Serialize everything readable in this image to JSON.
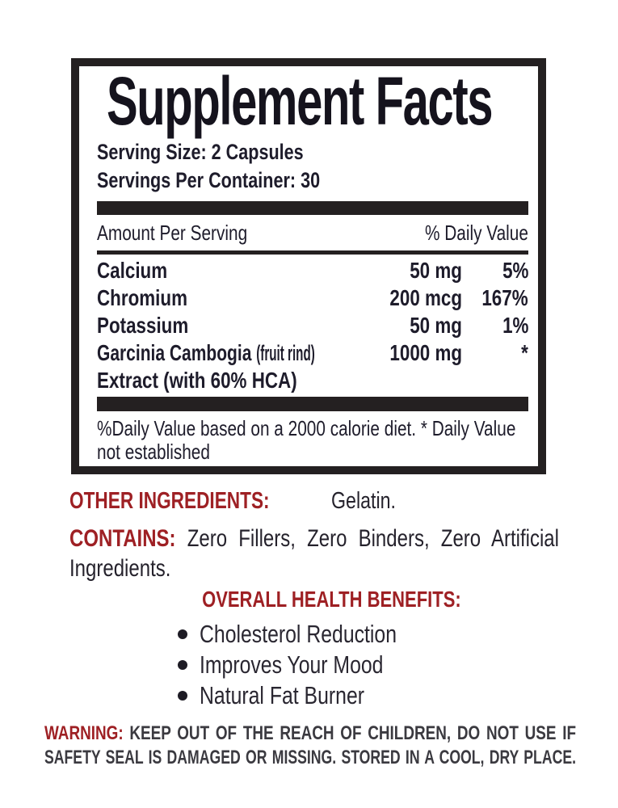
{
  "facts_panel": {
    "title": "Supplement Facts",
    "serving_size": "Serving Size: 2 Capsules",
    "servings_per_container": "Servings Per Container: 30",
    "header": {
      "amount": "Amount Per Serving",
      "daily_value": "% Daily Value"
    },
    "rows": [
      {
        "name": "Calcium",
        "amount": "50 mg",
        "dv": "5%"
      },
      {
        "name": "Chromium",
        "amount": "200 mcg",
        "dv": "167%"
      },
      {
        "name": "Potassium",
        "amount": "50 mg",
        "dv": "1%"
      },
      {
        "name": "Garcinia Cambogia",
        "note": "(fruit rind)",
        "amount": "1000 mg",
        "dv": "*"
      },
      {
        "name": "Extract (with 60% HCA)",
        "amount": "",
        "dv": ""
      }
    ],
    "footnote_line1": "%Daily Value based on a 2000 calorie diet. * Daily Value",
    "footnote_line2": "not established"
  },
  "other_ingredients": {
    "label": "OTHER INGREDIENTS:",
    "value": "Gelatin."
  },
  "contains": {
    "label": "CONTAINS:",
    "line1": "Zero Fillers, Zero Binders, Zero Artificial",
    "line2": "Ingredients."
  },
  "benefits": {
    "heading": "OVERALL HEALTH BENEFITS:",
    "items": [
      "Cholesterol Reduction",
      "Improves Your Mood",
      "Natural Fat Burner"
    ]
  },
  "warning": {
    "label": "WARNING:",
    "line1": "KEEP OUT OF THE REACH OF CHILDREN, DO NOT USE IF",
    "line2": "SAFETY SEAL IS DAMAGED OR MISSING. STORED IN A COOL, DRY PLACE."
  },
  "colors": {
    "accent_red": "#9e2024",
    "ink": "#1e1c2b",
    "bar_black": "#242021",
    "warning_ink": "#3b3a40"
  }
}
